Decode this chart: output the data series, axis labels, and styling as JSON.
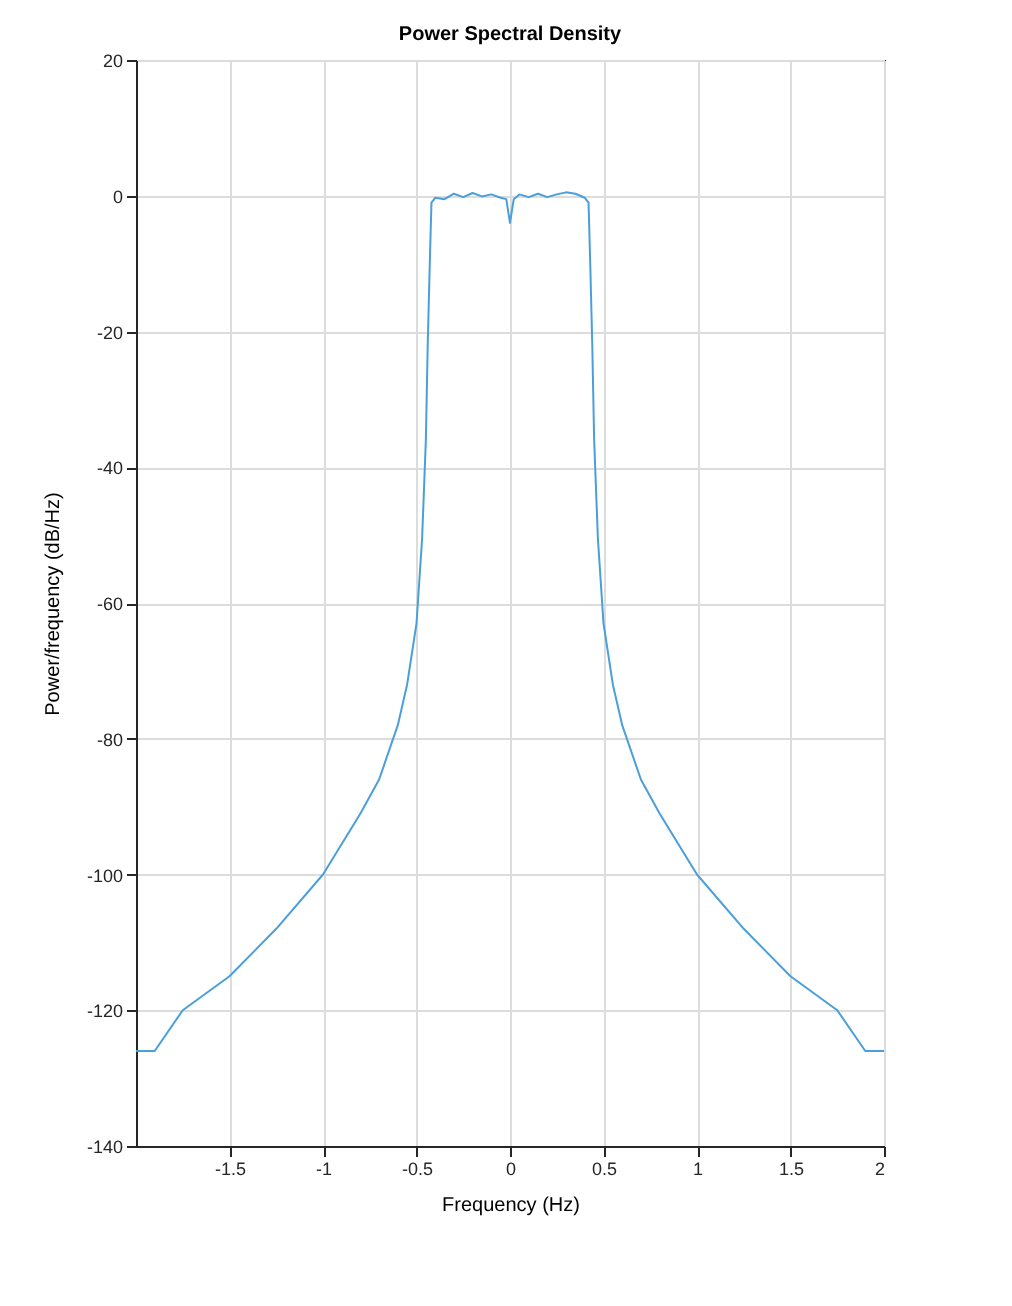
{
  "chart_data": {
    "type": "line",
    "title": "Power Spectral Density",
    "xlabel": "Frequency (Hz)",
    "ylabel": "Power/frequency (dB/Hz)",
    "x": [
      -2,
      -1.9,
      -1.75,
      -1.5,
      -1.25,
      -1,
      -0.8,
      -0.7,
      -0.6,
      -0.55,
      -0.5,
      -0.47,
      -0.45,
      -0.44,
      -0.43,
      -0.42,
      -0.4,
      -0.35,
      -0.3,
      -0.25,
      -0.2,
      -0.15,
      -0.1,
      -0.05,
      -0.02,
      0,
      0.02,
      0.05,
      0.1,
      0.15,
      0.2,
      0.25,
      0.3,
      0.35,
      0.4,
      0.42,
      0.43,
      0.44,
      0.45,
      0.47,
      0.5,
      0.55,
      0.6,
      0.7,
      0.8,
      1,
      1.25,
      1.5,
      1.75,
      1.9,
      2
    ],
    "series": [
      {
        "color": "#4a9fdb",
        "values": [
          -126,
          -126,
          -120,
          -115,
          -108,
          -100,
          -91,
          -86,
          -78,
          -72,
          -63,
          -50.5,
          -36,
          -22,
          -11,
          -1,
          -0.3,
          -0.5,
          0.3,
          -0.2,
          0.4,
          -0.1,
          0.2,
          -0.3,
          -0.5,
          -4,
          -0.5,
          0.2,
          -0.2,
          0.3,
          -0.2,
          0.2,
          0.5,
          0.3,
          -0.3,
          -1,
          -11,
          -22,
          -36,
          -50.5,
          -63,
          -72,
          -78,
          -86,
          -91,
          -100,
          -108,
          -115,
          -120,
          -126,
          -126
        ]
      }
    ],
    "xlim": [
      -2,
      2
    ],
    "xticks": [
      -1.5,
      -1,
      -0.5,
      0,
      0.5,
      1,
      1.5,
      2
    ],
    "ylim": [
      -140,
      20
    ],
    "yticks": [
      -140,
      -120,
      -100,
      -80,
      -60,
      -40,
      -20,
      0,
      20
    ],
    "grid": true,
    "marker": "none",
    "line_style": "solid"
  }
}
